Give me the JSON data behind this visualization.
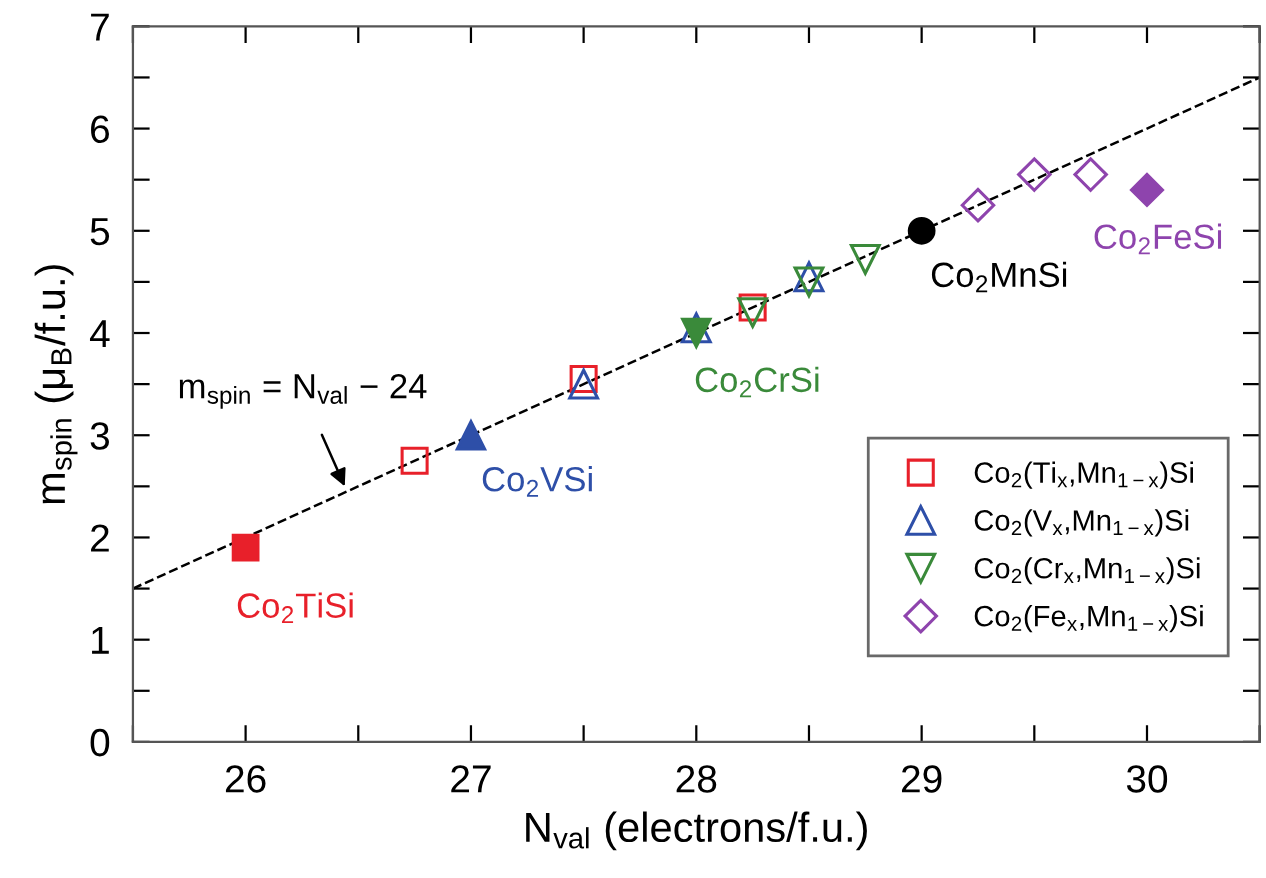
{
  "chart_data": {
    "type": "scatter",
    "xlabel": "N$_{val}$ (electrons/f.u.)",
    "ylabel": "m$_{spin}$ (μ$_{B}$/f.u.)",
    "xlim": [
      25.5,
      30.5
    ],
    "ylim": [
      0,
      7
    ],
    "xticks": [
      {
        "value": 25.5,
        "label": null
      },
      26,
      {
        "value": 26.5,
        "label": null
      },
      27,
      {
        "value": 27.5,
        "label": null
      },
      28,
      {
        "value": 28.5,
        "label": null
      },
      29,
      {
        "value": 29.5,
        "label": null
      },
      30,
      {
        "value": 30.5,
        "label": null
      }
    ],
    "yticks": [
      0,
      {
        "value": 0.5,
        "label": null
      },
      1,
      {
        "value": 1.5,
        "label": null
      },
      2,
      {
        "value": 2.5,
        "label": null
      },
      3,
      {
        "value": 3.5,
        "label": null
      },
      4,
      {
        "value": 4.5,
        "label": null
      },
      5,
      {
        "value": 5.5,
        "label": null
      },
      6,
      {
        "value": 6.5,
        "label": null
      },
      7
    ],
    "grid": false,
    "legend": "bottom right",
    "series": [
      {
        "type": "line",
        "x": [
          25.5,
          30.5
        ],
        "values": [
          1.5,
          6.5
        ],
        "color": "#000000",
        "line_style": "dashed",
        "marker": "none"
      },
      {
        "name": "Co$_{2}$(Ti$_{x}$,Mn$_{1−x}$)Si",
        "x": [
          26.75,
          27.5,
          28.25
        ],
        "values": [
          2.75,
          3.55,
          4.25
        ],
        "color": "#e8202a",
        "marker": "square"
      },
      {
        "name": "Co$_{2}$(V$_{x}$,Mn$_{1−x}$)Si",
        "x": [
          27.5,
          28,
          28.5
        ],
        "values": [
          3.5,
          4.05,
          4.55
        ],
        "color": "#2e4fa8",
        "marker": "triangle"
      },
      {
        "name": "Co$_{2}$(Cr$_{x}$,Mn$_{1−x}$)Si",
        "x": [
          28.25,
          28.5,
          28.75
        ],
        "values": [
          4.2,
          4.5,
          4.72
        ],
        "color": "#3a8a3a",
        "marker": "triangle_down"
      },
      {
        "name": "Co$_{2}$(Fe$_{x}$,Mn$_{1−x}$)Si",
        "x": [
          29.25,
          29.5,
          29.75
        ],
        "values": [
          5.25,
          5.55,
          5.55
        ],
        "color": "#8e44ad",
        "marker": "diamond"
      },
      {
        "name": "Co$_{2}$TiSi",
        "x": [
          26
        ],
        "values": [
          1.9
        ],
        "color": "#e8202a",
        "marker": "square"
      },
      {
        "name": "Co$_{2}$VSi",
        "x": [
          27
        ],
        "values": [
          3.0
        ],
        "color": "#2e4fa8",
        "marker": "triangle"
      },
      {
        "name": "Co$_{2}$CrSi",
        "x": [
          28
        ],
        "values": [
          4.0
        ],
        "color": "#3a8a3a",
        "marker": "triangle_down"
      },
      {
        "name": "Co$_{2}$MnSi",
        "x": [
          29
        ],
        "values": [
          5.0
        ],
        "color": "#000000",
        "marker": "circle"
      },
      {
        "name": "Co$_{2}$FeSi",
        "x": [
          30
        ],
        "values": [
          5.4
        ],
        "color": "#8e44ad",
        "marker": "diamond"
      }
    ],
    "annotations": [
      {
        "text": "m$_{spin}$ = N$_{val}$ − 24",
        "x": 26.45,
        "y": 2.45
      }
    ]
  }
}
